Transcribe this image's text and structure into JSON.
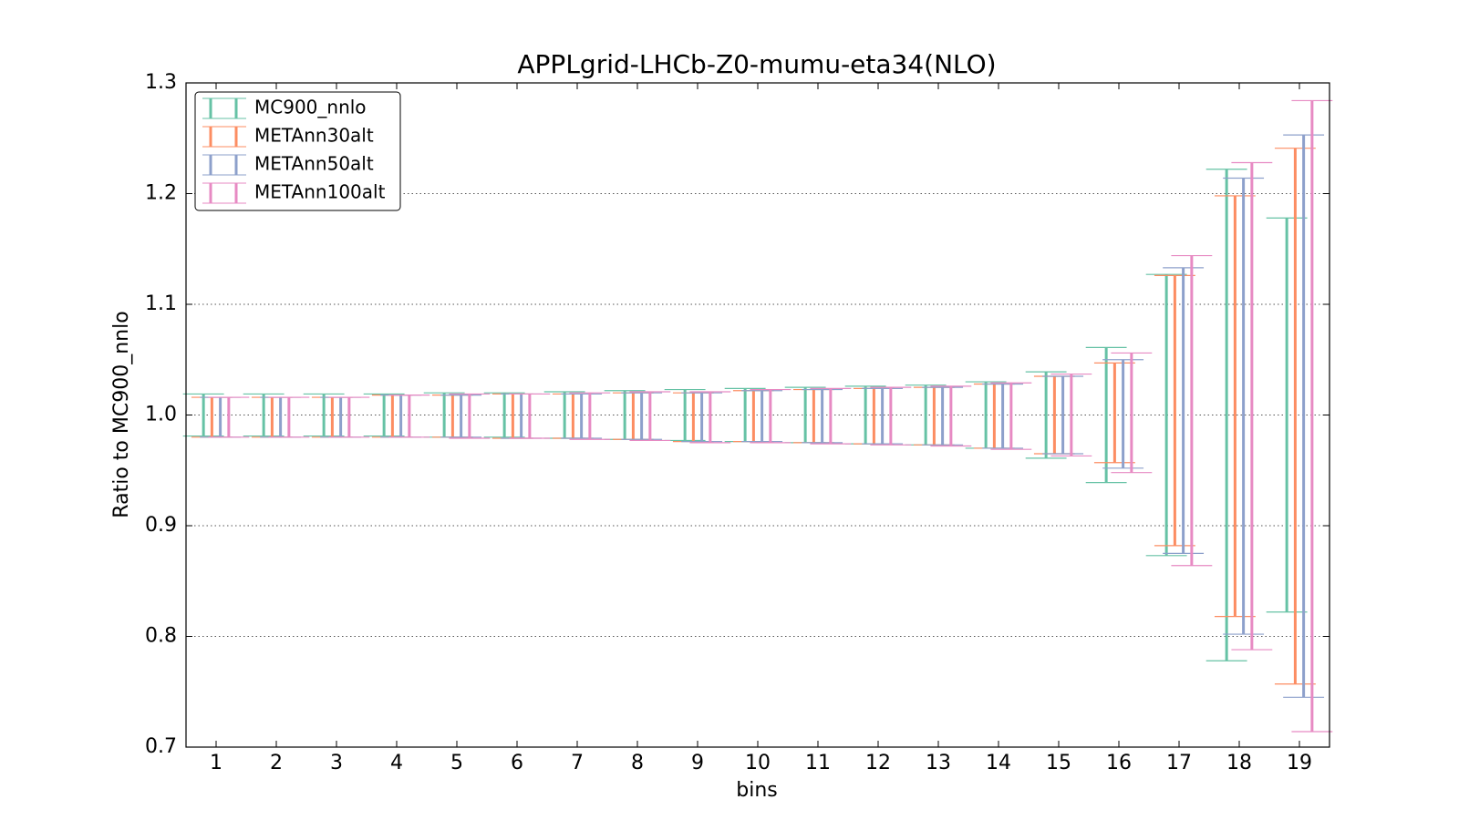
{
  "chart_data": {
    "type": "errorbar",
    "title": "APPLgrid-LHCb-Z0-mumu-eta34(NLO)",
    "x_label": "bins",
    "y_label": "Ratio to MC900_nnlo",
    "categories": [
      "1",
      "2",
      "3",
      "4",
      "5",
      "6",
      "7",
      "8",
      "9",
      "10",
      "11",
      "12",
      "13",
      "14",
      "15",
      "16",
      "17",
      "18",
      "19"
    ],
    "ylim": [
      0.7,
      1.3
    ],
    "yticks": [
      0.7,
      0.8,
      0.9,
      {
        "value": 1,
        "label": "1.0"
      },
      1.1,
      1.2,
      1.3
    ],
    "grid": true,
    "legend": "upper left",
    "series": [
      {
        "name": "MC900_nnlo",
        "color": "#66c2a5",
        "values": [
          1,
          1,
          1,
          1,
          1,
          1,
          1,
          1,
          1,
          1,
          1,
          1,
          1,
          1,
          1,
          1,
          1,
          1,
          1
        ],
        "errors": [
          0.019,
          0.019,
          0.019,
          0.019,
          0.02,
          0.02,
          0.021,
          0.022,
          0.023,
          0.024,
          0.025,
          0.026,
          0.027,
          0.03,
          0.039,
          0.061,
          0.127,
          0.222,
          0.178
        ]
      },
      {
        "name": "METAnn30alt",
        "color": "#fc8d62",
        "values": [
          0.998,
          0.998,
          0.998,
          0.999,
          0.999,
          0.999,
          0.999,
          0.999,
          0.998,
          0.999,
          0.999,
          0.999,
          0.999,
          0.999,
          1,
          1.002,
          1.004,
          1.008,
          0.999
        ],
        "errors": [
          0.018,
          0.018,
          0.018,
          0.019,
          0.019,
          0.02,
          0.02,
          0.021,
          0.022,
          0.023,
          0.024,
          0.025,
          0.026,
          0.029,
          0.035,
          0.045,
          0.122,
          0.19,
          0.242
        ]
      },
      {
        "name": "METAnn50alt",
        "color": "#8da0cb",
        "values": [
          0.998,
          0.998,
          0.998,
          0.999,
          0.999,
          0.999,
          0.999,
          0.999,
          0.998,
          0.999,
          0.999,
          0.999,
          0.999,
          0.999,
          1,
          1.001,
          1.004,
          1.008,
          0.999
        ],
        "errors": [
          0.018,
          0.018,
          0.018,
          0.019,
          0.019,
          0.02,
          0.02,
          0.021,
          0.022,
          0.023,
          0.024,
          0.025,
          0.026,
          0.029,
          0.035,
          0.049,
          0.129,
          0.206,
          0.254
        ]
      },
      {
        "name": "METAnn100alt",
        "color": "#e78ac3",
        "values": [
          0.998,
          0.998,
          0.998,
          0.999,
          0.999,
          0.999,
          0.999,
          0.999,
          0.998,
          0.999,
          0.999,
          0.999,
          0.999,
          0.999,
          1,
          1.002,
          1.004,
          1.008,
          0.999
        ],
        "errors": [
          0.018,
          0.018,
          0.018,
          0.019,
          0.02,
          0.02,
          0.021,
          0.022,
          0.023,
          0.024,
          0.025,
          0.026,
          0.027,
          0.03,
          0.037,
          0.054,
          0.14,
          0.22,
          0.285
        ]
      }
    ]
  }
}
